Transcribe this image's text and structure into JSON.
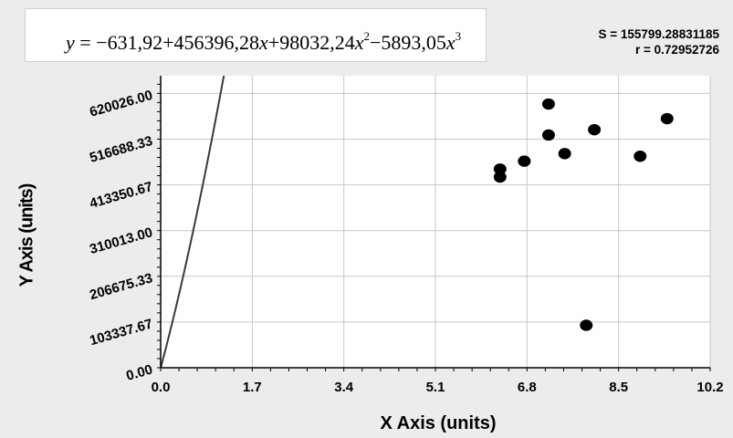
{
  "equation": {
    "c0": "−631,92",
    "c1": "+456396,28",
    "c2": "+98032,24",
    "c3": "−5893,05",
    "x": "x",
    "y": "y",
    "eq": "=",
    "pow2": "2",
    "pow3": "3"
  },
  "stats": {
    "s": "S = 155799.28831185",
    "r": "r = 0.72952726"
  },
  "chart_data": {
    "type": "scatter",
    "xlabel": "X Axis (units)",
    "ylabel": "Y Axis (units)",
    "xlim": [
      0.0,
      10.2
    ],
    "ylim": [
      0.0,
      660000
    ],
    "x_ticks": [
      "0.0",
      "1.7",
      "3.4",
      "5.1",
      "6.8",
      "8.5",
      "10.2"
    ],
    "y_ticks": [
      "0.00",
      "103337.67",
      "206675.33",
      "310013.00",
      "413350.67",
      "516688.33",
      "620026.00"
    ],
    "grid": true,
    "points": [
      {
        "x": 6.3,
        "y": 449000
      },
      {
        "x": 6.3,
        "y": 431000
      },
      {
        "x": 6.75,
        "y": 467000
      },
      {
        "x": 7.2,
        "y": 596000
      },
      {
        "x": 7.2,
        "y": 526000
      },
      {
        "x": 7.5,
        "y": 484000
      },
      {
        "x": 7.9,
        "y": 96000
      },
      {
        "x": 8.05,
        "y": 538000
      },
      {
        "x": 8.9,
        "y": 478000
      },
      {
        "x": 9.4,
        "y": 563000
      }
    ],
    "fit": {
      "type": "polynomial",
      "degree": 3,
      "coefficients": [
        -631.92,
        456396.28,
        98032.24,
        -5893.05
      ]
    }
  },
  "colors": {
    "plot_bg": "#ffffff",
    "grid": "#c8c8c8",
    "curve": "#3a3a3a",
    "marker": "#000000",
    "axis": "#000000"
  }
}
